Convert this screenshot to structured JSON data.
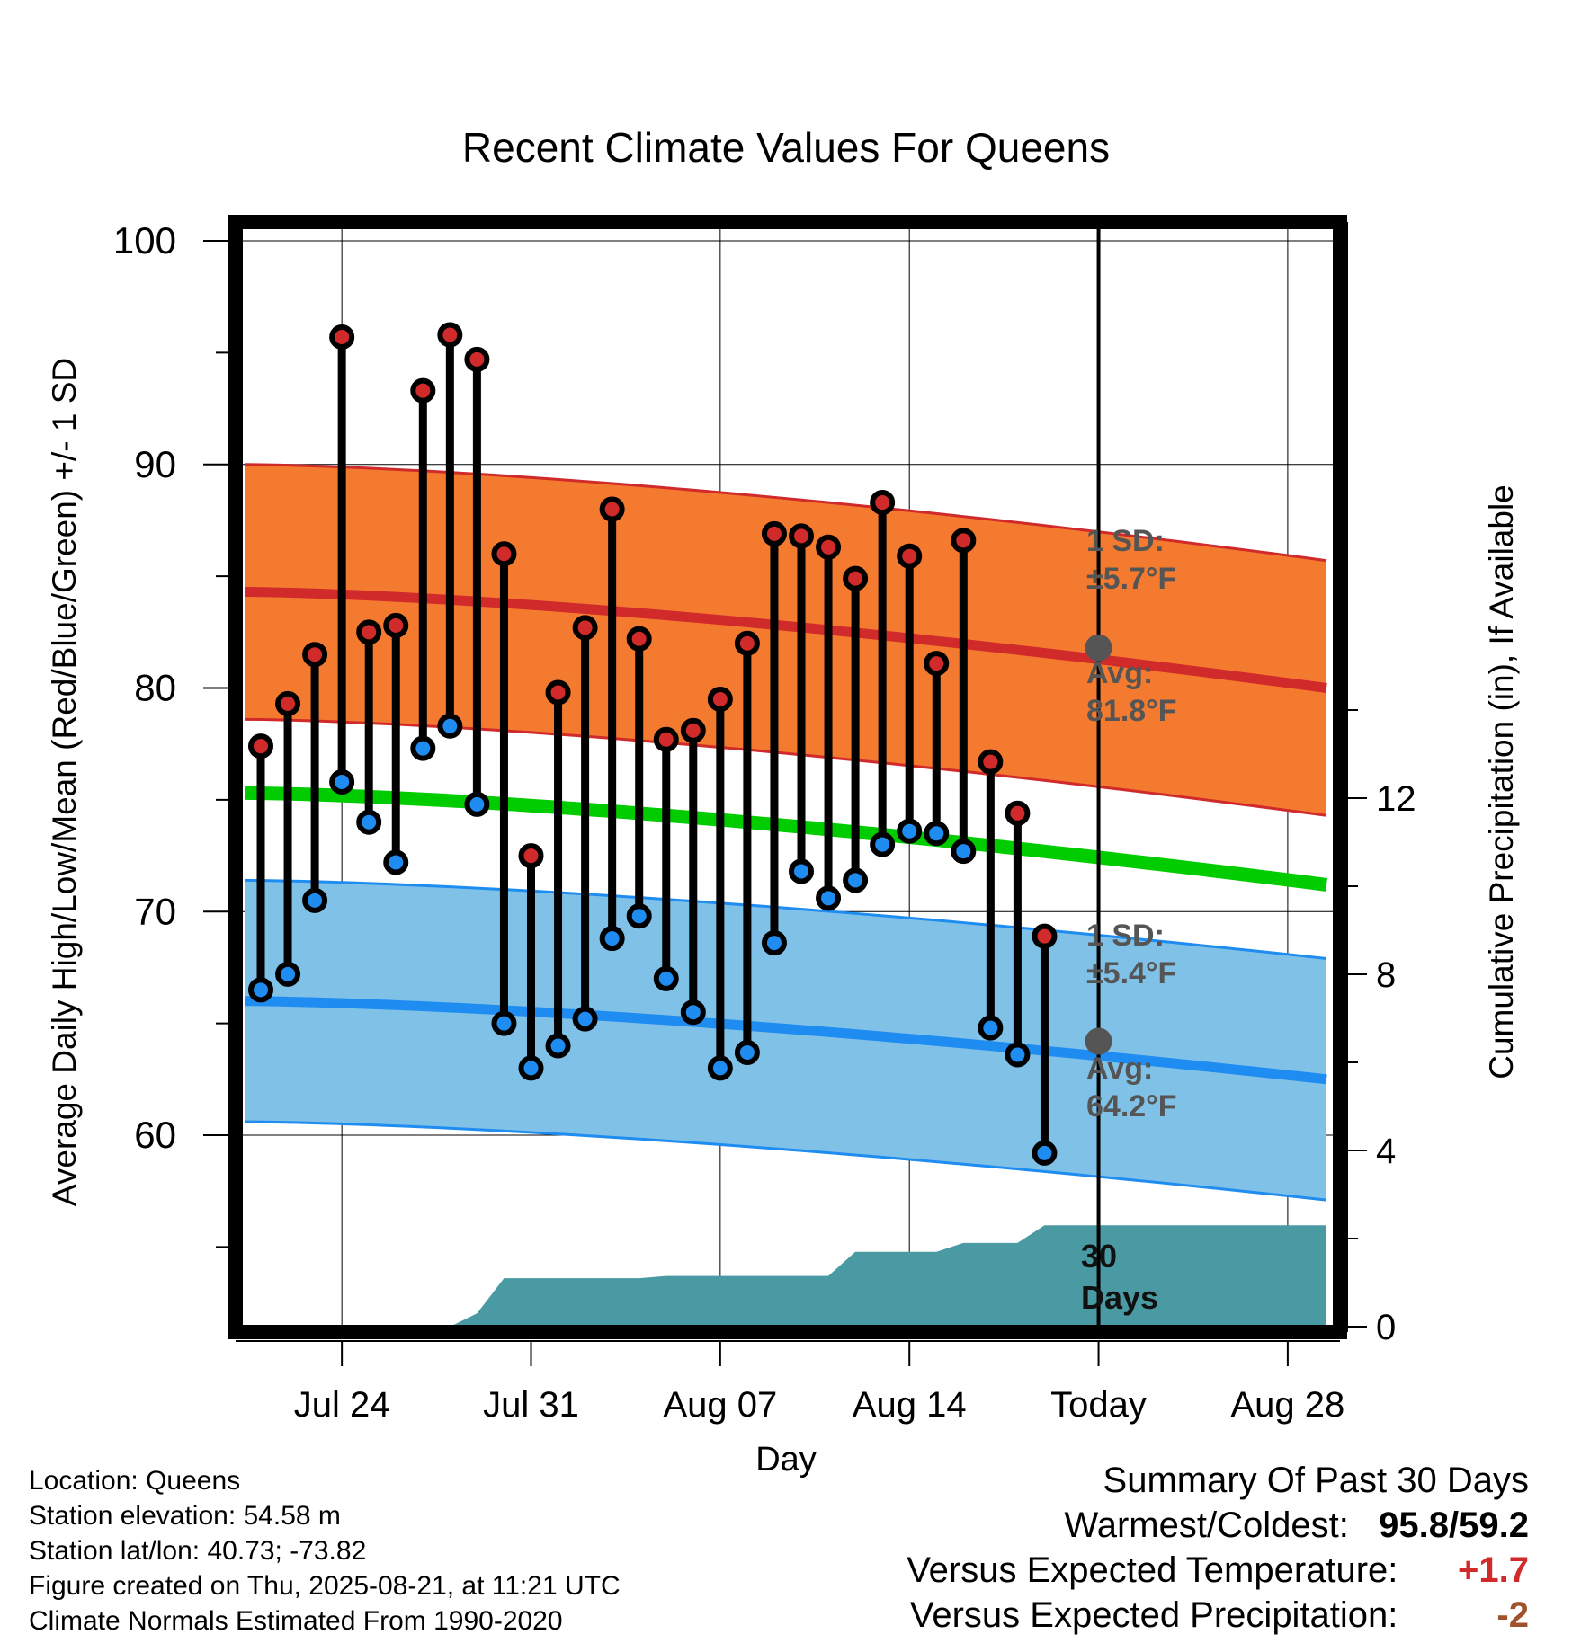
{
  "chart_data": {
    "type": "line",
    "title": "Recent Climate Values For Queens",
    "xlabel": "Day",
    "ylabel": "Average Daily High/Low/Mean (Red/Blue/Green) +/- 1 SD",
    "y2label": "Cumulative Precipitation (in), If Available",
    "ylim": [
      50.5,
      101
    ],
    "y_ticks": [
      60,
      70,
      80,
      90,
      100
    ],
    "y2_ticks": [
      0,
      4,
      8,
      12
    ],
    "x_ticks": [
      "Jul 24",
      "Jul 31",
      "Aug 07",
      "Aug 14",
      "Today",
      "Aug 28"
    ],
    "days": [
      {
        "high": 77.4,
        "low": 66.5
      },
      {
        "high": 79.3,
        "low": 67.2
      },
      {
        "high": 81.5,
        "low": 70.5
      },
      {
        "high": 95.7,
        "low": 75.8
      },
      {
        "high": 82.5,
        "low": 74.0
      },
      {
        "high": 82.8,
        "low": 72.2
      },
      {
        "high": 93.3,
        "low": 77.3
      },
      {
        "high": 95.8,
        "low": 78.3
      },
      {
        "high": 94.7,
        "low": 74.8
      },
      {
        "high": 86.0,
        "low": 65.0
      },
      {
        "high": 72.5,
        "low": 63.0
      },
      {
        "high": 79.8,
        "low": 64.0
      },
      {
        "high": 82.7,
        "low": 65.2
      },
      {
        "high": 88.0,
        "low": 68.8
      },
      {
        "high": 82.2,
        "low": 69.8
      },
      {
        "high": 77.7,
        "low": 67.0
      },
      {
        "high": 78.1,
        "low": 65.5
      },
      {
        "high": 79.5,
        "low": 63.0
      },
      {
        "high": 82.0,
        "low": 63.7
      },
      {
        "high": 86.9,
        "low": 68.6
      },
      {
        "high": 86.8,
        "low": 71.8
      },
      {
        "high": 86.3,
        "low": 70.6
      },
      {
        "high": 84.9,
        "low": 71.4
      },
      {
        "high": 88.3,
        "low": 73.0
      },
      {
        "high": 85.9,
        "low": 73.6
      },
      {
        "high": 81.1,
        "low": 73.5
      },
      {
        "high": 86.6,
        "low": 72.7
      },
      {
        "high": 76.7,
        "low": 64.8
      },
      {
        "high": 74.4,
        "low": 63.6
      },
      {
        "high": 68.9,
        "low": 59.2
      }
    ],
    "normal_high": {
      "start": 84.3,
      "end": 80.0,
      "sd": 5.7
    },
    "normal_low": {
      "start": 66.0,
      "end": 62.5,
      "sd": 5.4
    },
    "normal_mean": {
      "start": 75.3,
      "end": 71.2
    },
    "precip_cumulative_in": [
      0,
      0,
      0,
      0,
      0,
      0,
      0,
      0,
      0.3,
      1.1,
      1.1,
      1.1,
      1.1,
      1.1,
      1.1,
      1.15,
      1.15,
      1.15,
      1.15,
      1.15,
      1.15,
      1.15,
      1.7,
      1.7,
      1.7,
      1.7,
      1.9,
      1.9,
      1.9,
      2.3
    ],
    "today_avg_high": 81.8,
    "today_avg_low": 64.2,
    "annotations": {
      "high_sd_label": "1 SD:",
      "high_sd_value": "±5.7°F",
      "high_avg_label": "Avg:",
      "high_avg_value": "81.8°F",
      "low_sd_label": "1 SD:",
      "low_sd_value": "±5.4°F",
      "low_avg_label": "Avg:",
      "low_avg_value": "64.2°F",
      "precip_label_1": "30",
      "precip_label_2": "Days"
    },
    "colors": {
      "high_band": "#f47a30",
      "high_line": "#d02a2a",
      "low_band": "#80c1e7",
      "low_line": "#1e8cf0",
      "mean_line": "#00cc00",
      "precip": "#4a9aa3",
      "high_dot": "#d02a2a",
      "low_dot": "#1e8cf0",
      "today_dot": "#555555"
    }
  },
  "info": {
    "location": "Location: Queens",
    "elevation": "Station elevation: 54.58 m",
    "latlon": "Station lat/lon: 40.73; -73.82",
    "created": "Figure created on Thu, 2025-08-21, at 11:21 UTC",
    "normals": "Climate Normals Estimated From 1990-2020"
  },
  "summary": {
    "title": "Summary Of Past 30 Days",
    "warm_cold_label": "Warmest/Coldest:",
    "warm_cold_value": "95.8/59.2",
    "temp_label": "Versus Expected Temperature:",
    "temp_value": "+1.7",
    "precip_label": "Versus Expected Precipitation:",
    "precip_value": "-2"
  }
}
